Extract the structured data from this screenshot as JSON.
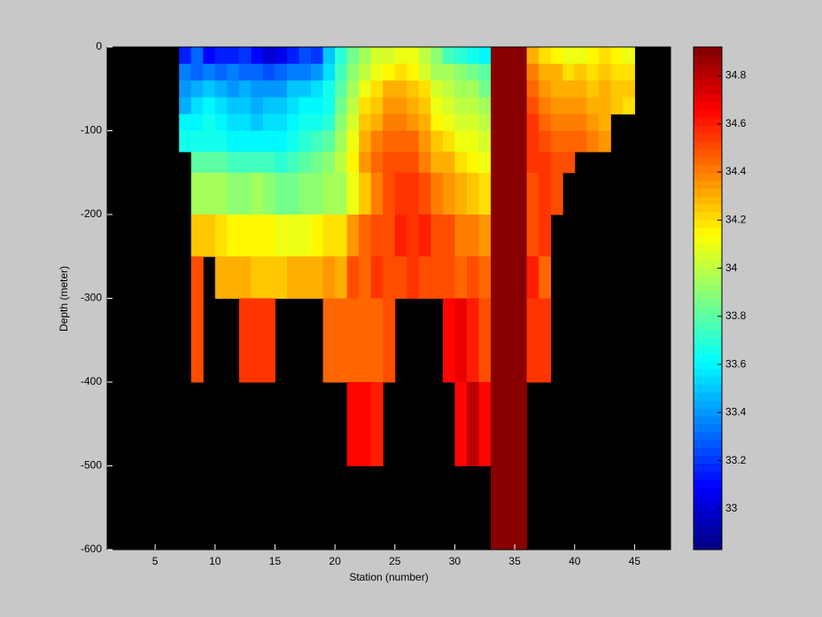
{
  "chart_data": {
    "type": "heatmap",
    "x_label": "Station (number)",
    "y_label": "Depth (meter)",
    "xlim": [
      1,
      48
    ],
    "ylim": [
      -600,
      0
    ],
    "xticks": [
      5,
      10,
      15,
      20,
      25,
      30,
      35,
      40,
      45
    ],
    "yticks": [
      0,
      -100,
      -200,
      -300,
      -400,
      -500,
      -600
    ],
    "colormap": "jet",
    "background": "#000000",
    "zlim": [
      32.83,
      34.92
    ],
    "zticks": [
      33,
      33.2,
      33.4,
      33.6,
      33.8,
      34,
      34.2,
      34.4,
      34.6,
      34.8
    ],
    "x_edges": [
      7,
      8,
      9,
      10,
      11,
      12,
      13,
      14,
      15,
      16,
      17,
      18,
      19,
      20,
      21,
      22,
      23,
      24,
      25,
      26,
      27,
      28,
      29,
      30,
      31,
      32,
      33,
      34,
      35,
      36,
      37,
      38,
      39,
      40,
      41,
      42,
      43,
      44,
      45
    ],
    "y_edges": [
      0,
      -20,
      -40,
      -60,
      -80,
      -100,
      -125,
      -150,
      -200,
      -250,
      -300,
      -400,
      -500,
      -600
    ],
    "z": [
      [
        33.15,
        33.3,
        33.1,
        33.15,
        33.15,
        33.2,
        33.1,
        33.0,
        33.05,
        33.15,
        33.25,
        33.2,
        33.5,
        33.7,
        33.85,
        33.95,
        34.05,
        34.05,
        34.1,
        34.1,
        34.0,
        33.9,
        33.75,
        33.7,
        33.65,
        33.6,
        34.9,
        34.9,
        34.9,
        34.3,
        34.2,
        34.15,
        34.1,
        34.1,
        34.15,
        34.2,
        34.15,
        34.1
      ],
      [
        33.35,
        33.3,
        33.35,
        33.3,
        33.35,
        33.3,
        33.3,
        33.25,
        33.3,
        33.35,
        33.35,
        33.4,
        33.55,
        33.75,
        33.9,
        34.0,
        34.1,
        34.15,
        34.2,
        34.15,
        34.05,
        33.95,
        33.95,
        33.9,
        33.85,
        33.8,
        34.9,
        34.9,
        34.9,
        34.4,
        34.3,
        34.3,
        34.2,
        34.25,
        34.2,
        34.25,
        34.2,
        34.2
      ],
      [
        33.4,
        33.45,
        33.5,
        33.45,
        33.4,
        33.45,
        33.4,
        33.4,
        33.4,
        33.5,
        33.5,
        33.55,
        33.65,
        33.8,
        33.95,
        34.1,
        34.2,
        34.3,
        34.3,
        34.25,
        34.2,
        34.05,
        34.0,
        33.95,
        33.95,
        33.85,
        34.9,
        34.9,
        34.9,
        34.45,
        34.35,
        34.3,
        34.3,
        34.3,
        34.25,
        34.3,
        34.25,
        34.25
      ],
      [
        33.45,
        33.55,
        33.6,
        33.55,
        33.5,
        33.5,
        33.45,
        33.5,
        33.5,
        33.55,
        33.6,
        33.6,
        33.65,
        33.85,
        34.0,
        34.2,
        34.25,
        34.35,
        34.35,
        34.3,
        34.25,
        34.1,
        34.05,
        34.0,
        34.0,
        33.95,
        34.9,
        34.9,
        34.9,
        34.5,
        34.4,
        34.35,
        34.35,
        34.35,
        34.3,
        34.3,
        34.25,
        34.2
      ],
      [
        33.6,
        33.6,
        33.65,
        33.6,
        33.55,
        33.55,
        33.5,
        33.55,
        33.55,
        33.6,
        33.65,
        33.65,
        33.7,
        33.9,
        34.05,
        34.25,
        34.3,
        34.4,
        34.4,
        34.35,
        34.3,
        34.15,
        34.1,
        34.05,
        34.05,
        34.0,
        34.9,
        34.9,
        34.9,
        34.55,
        34.45,
        34.4,
        34.4,
        34.4,
        34.35,
        34.3,
        null,
        null
      ],
      [
        33.65,
        33.65,
        33.65,
        33.65,
        33.6,
        33.6,
        33.6,
        33.6,
        33.6,
        33.65,
        33.7,
        33.75,
        33.8,
        33.95,
        34.1,
        34.3,
        34.4,
        34.45,
        34.45,
        34.45,
        34.35,
        34.25,
        34.2,
        34.1,
        34.1,
        34.05,
        34.9,
        34.9,
        34.9,
        34.55,
        34.5,
        34.45,
        34.45,
        34.45,
        34.4,
        34.35,
        null,
        null
      ],
      [
        null,
        33.8,
        33.8,
        33.8,
        33.75,
        33.75,
        33.75,
        33.75,
        33.7,
        33.75,
        33.8,
        33.85,
        33.9,
        34.0,
        34.15,
        34.35,
        34.45,
        34.5,
        34.5,
        34.5,
        34.4,
        34.3,
        34.3,
        34.2,
        34.15,
        34.1,
        34.9,
        34.9,
        34.9,
        34.55,
        34.55,
        34.5,
        34.5,
        null,
        null,
        null,
        null,
        null
      ],
      [
        null,
        33.95,
        33.95,
        33.95,
        33.9,
        33.9,
        33.95,
        33.9,
        33.85,
        33.85,
        33.9,
        33.9,
        33.95,
        33.95,
        34.1,
        34.25,
        34.4,
        34.5,
        34.55,
        34.55,
        34.5,
        34.4,
        34.35,
        34.3,
        34.25,
        34.2,
        34.9,
        34.9,
        34.9,
        34.5,
        34.55,
        34.5,
        null,
        null,
        null,
        null,
        null,
        null
      ],
      [
        null,
        34.25,
        34.25,
        34.2,
        34.15,
        34.15,
        34.15,
        34.15,
        34.1,
        34.1,
        34.1,
        34.15,
        34.2,
        34.2,
        34.35,
        34.45,
        34.5,
        34.5,
        34.6,
        34.55,
        34.6,
        34.5,
        34.5,
        34.4,
        34.4,
        34.35,
        34.9,
        34.9,
        34.9,
        34.5,
        34.55,
        null,
        null,
        null,
        null,
        null,
        null,
        null
      ],
      [
        null,
        34.5,
        null,
        34.3,
        34.3,
        34.3,
        34.25,
        34.25,
        34.25,
        34.3,
        34.3,
        34.3,
        34.35,
        34.3,
        34.5,
        34.45,
        34.55,
        34.5,
        34.5,
        34.55,
        34.5,
        34.5,
        34.5,
        34.45,
        34.5,
        34.45,
        34.9,
        34.9,
        34.9,
        34.6,
        34.45,
        null,
        null,
        null,
        null,
        null,
        null,
        null
      ],
      [
        null,
        34.5,
        null,
        null,
        null,
        34.55,
        34.55,
        34.55,
        null,
        null,
        null,
        null,
        34.45,
        34.45,
        34.45,
        34.45,
        34.45,
        34.5,
        null,
        null,
        null,
        null,
        34.65,
        34.7,
        34.6,
        34.5,
        34.9,
        34.9,
        34.9,
        34.55,
        34.55,
        null,
        null,
        null,
        null,
        null,
        null,
        null
      ],
      [
        null,
        null,
        null,
        null,
        null,
        null,
        null,
        null,
        null,
        null,
        null,
        null,
        null,
        null,
        34.65,
        34.65,
        34.6,
        null,
        null,
        null,
        null,
        null,
        null,
        34.65,
        34.8,
        34.65,
        34.9,
        34.9,
        34.9,
        null,
        null,
        null,
        null,
        null,
        null,
        null,
        null,
        null
      ],
      [
        null,
        null,
        null,
        null,
        null,
        null,
        null,
        null,
        null,
        null,
        null,
        null,
        null,
        null,
        null,
        null,
        null,
        null,
        null,
        null,
        null,
        null,
        null,
        null,
        null,
        null,
        34.9,
        34.9,
        34.9,
        null,
        null,
        null,
        null,
        null,
        null,
        null,
        null,
        null
      ]
    ]
  }
}
